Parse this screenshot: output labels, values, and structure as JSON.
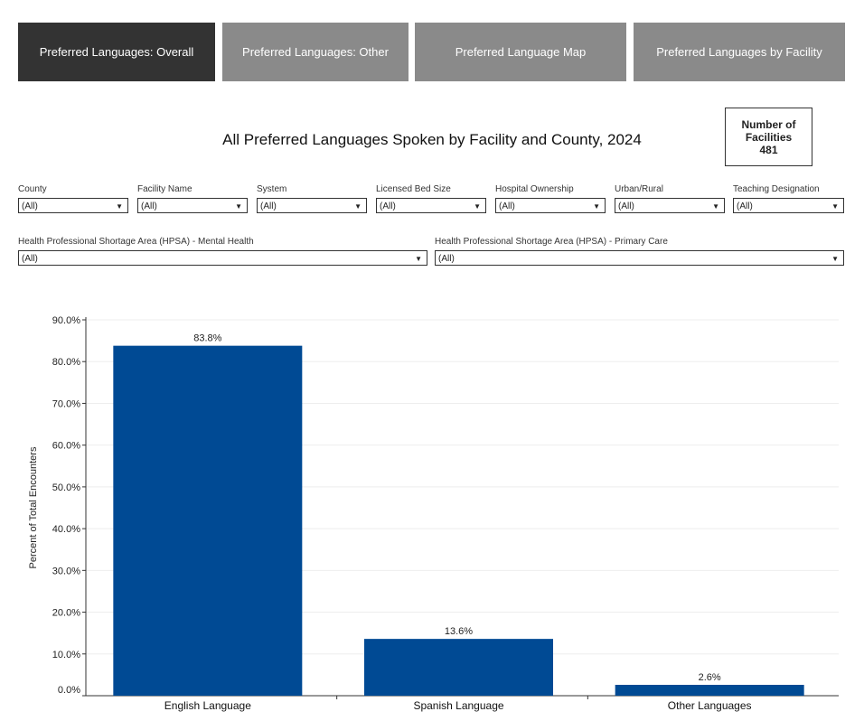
{
  "tabs": [
    {
      "label": "Preferred Languages: Overall",
      "active": true
    },
    {
      "label": "Preferred Languages: Other",
      "active": false
    },
    {
      "label": "Preferred Language Map",
      "active": false
    },
    {
      "label": "Preferred Languages by Facility",
      "active": false
    }
  ],
  "title": "All Preferred Languages Spoken by Facility and County, 2024",
  "kpi": {
    "label_line1": "Number of",
    "label_line2": "Facilities",
    "value": "481"
  },
  "filters": [
    {
      "label": "County",
      "value": "(All)"
    },
    {
      "label": "Facility Name",
      "value": "(All)"
    },
    {
      "label": "System",
      "value": "(All)"
    },
    {
      "label": "Licensed Bed Size",
      "value": "(All)"
    },
    {
      "label": "Hospital Ownership",
      "value": "(All)"
    },
    {
      "label": "Urban/Rural",
      "value": "(All)"
    },
    {
      "label": "Teaching Designation",
      "value": "(All)"
    },
    {
      "label": "Health Professional Shortage Area (HPSA) - Mental Health",
      "value": "(All)"
    },
    {
      "label": "Health Professional Shortage Area (HPSA) - Primary Care",
      "value": "(All)"
    }
  ],
  "chart_data": {
    "type": "bar",
    "categories": [
      "English Language",
      "Spanish Language",
      "Other Languages"
    ],
    "values": [
      83.8,
      13.6,
      2.6
    ],
    "data_labels": [
      "83.8%",
      "13.6%",
      "2.6%"
    ],
    "ylabel": "Percent of Total Encounters",
    "xlabel": "",
    "ylim": [
      0,
      90
    ],
    "yticks": [
      0,
      10,
      20,
      30,
      40,
      50,
      60,
      70,
      80,
      90
    ],
    "ytick_labels": [
      "0.0%",
      "10.0%",
      "20.0%",
      "30.0%",
      "40.0%",
      "50.0%",
      "60.0%",
      "70.0%",
      "80.0%",
      "90.0%"
    ],
    "bar_color": "#004a94",
    "grid": true
  }
}
